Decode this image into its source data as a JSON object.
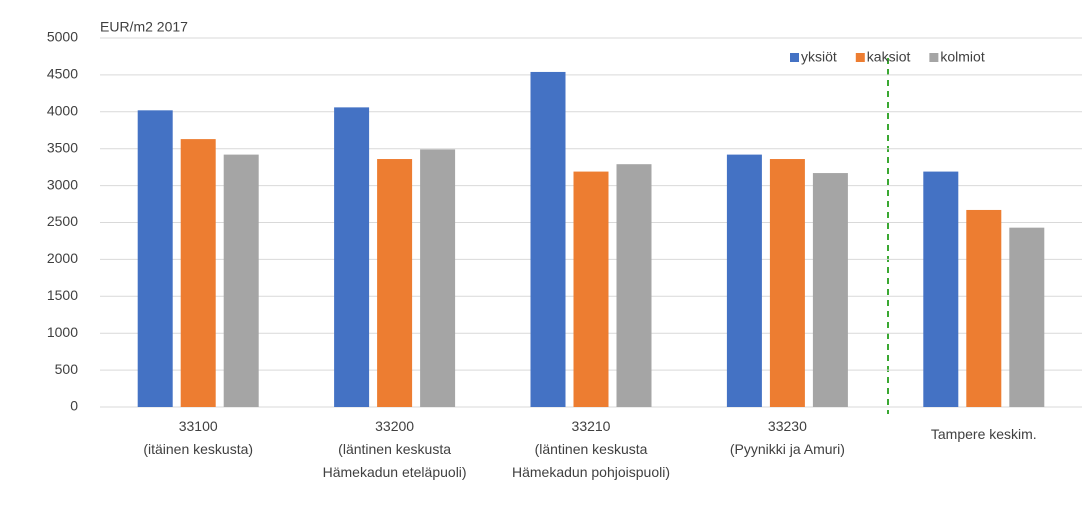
{
  "chart_data": {
    "type": "bar",
    "y_axis_title": "EUR/m2 2017",
    "categories": [
      [
        "33100",
        "(itäinen keskusta)"
      ],
      [
        "33200",
        "(läntinen keskusta",
        "Hämekadun eteläpuoli)"
      ],
      [
        "33210",
        "(läntinen keskusta",
        "Hämekadun pohjoispuoli)"
      ],
      [
        "33230",
        "(Pyynikki ja Amuri)"
      ],
      [
        "Tampere keskim."
      ]
    ],
    "series": [
      {
        "name": "yksiöt",
        "color": "#4472c4",
        "values": [
          4020,
          4060,
          4540,
          3420,
          3190
        ]
      },
      {
        "name": "kaksiot",
        "color": "#ed7d31",
        "values": [
          3630,
          3360,
          3190,
          3360,
          2670
        ]
      },
      {
        "name": "kolmiot",
        "color": "#a5a5a5",
        "values": [
          3420,
          3490,
          3290,
          3170,
          2430
        ]
      }
    ],
    "ylim": [
      0,
      5000
    ],
    "yticks": [
      0,
      500,
      1000,
      1500,
      2000,
      2500,
      3000,
      3500,
      4000,
      4500,
      5000
    ],
    "grid": true,
    "legend": "top-right"
  }
}
